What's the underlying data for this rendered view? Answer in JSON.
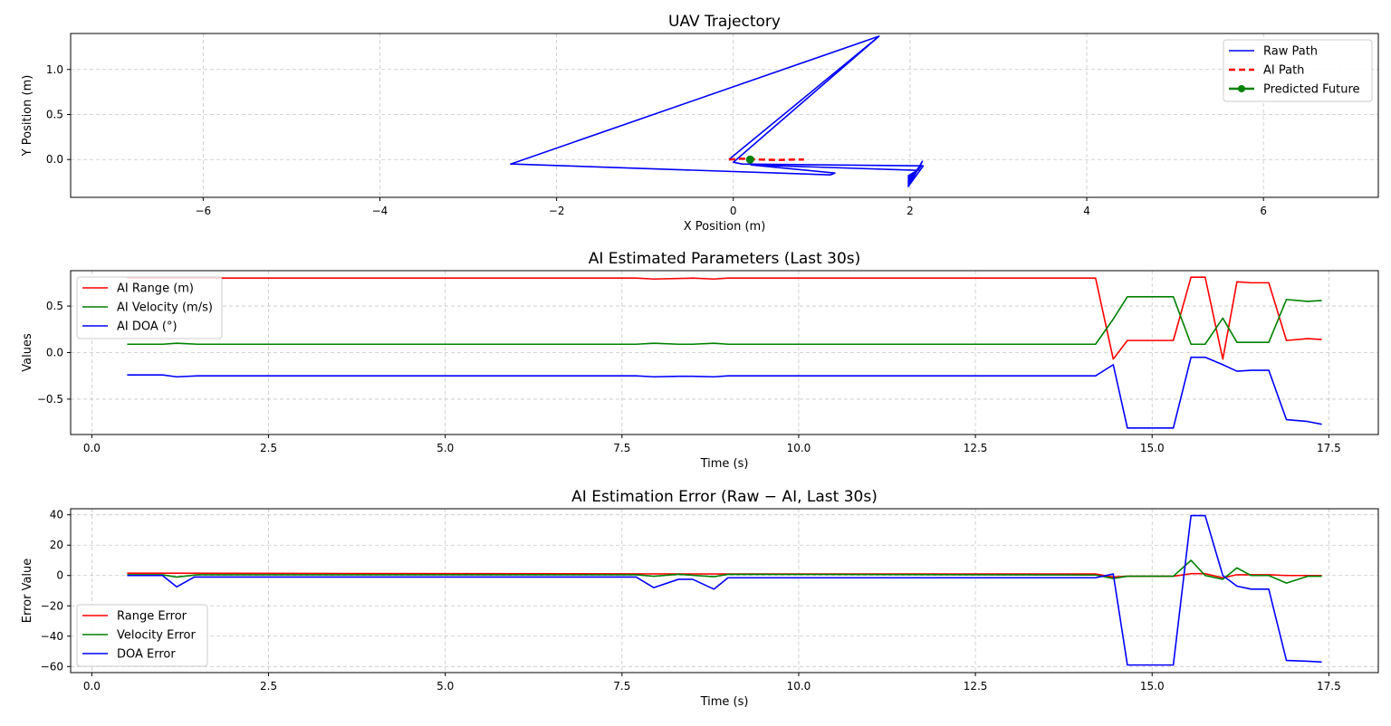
{
  "chart_data": [
    {
      "type": "line",
      "title": "UAV Trajectory",
      "xlabel": "X Position (m)",
      "ylabel": "Y Position (m)",
      "xlim": [
        -7.5,
        7.3
      ],
      "ylim": [
        -0.42,
        1.4
      ],
      "xticks": [
        -6,
        -4,
        -2,
        0,
        2,
        4,
        6
      ],
      "yticks": [
        0.0,
        0.5,
        1.0
      ],
      "grid": true,
      "legend_position": "upper right",
      "series": [
        {
          "name": "Raw Path",
          "color": "#0000ff",
          "style": "solid",
          "x": [
            -0.05,
            1.65,
            0.0,
            0.1,
            2.15,
            1.98,
            2.14,
            1.98,
            2.13,
            1.98,
            2.12,
            1.98,
            2.12,
            1.98,
            2.1,
            1.98,
            2.1,
            1.98,
            2.09,
            0.2,
            1.15,
            1.1,
            -2.5,
            -2.52,
            1.65
          ],
          "y": [
            0.0,
            1.37,
            -0.03,
            -0.05,
            -0.07,
            -0.3,
            -0.02,
            -0.28,
            -0.04,
            -0.26,
            -0.06,
            -0.24,
            -0.08,
            -0.22,
            -0.1,
            -0.2,
            -0.11,
            -0.18,
            -0.12,
            -0.06,
            -0.15,
            -0.17,
            -0.05,
            -0.05,
            1.37
          ]
        },
        {
          "name": "AI Path",
          "color": "#ff0000",
          "style": "dashed",
          "x": [
            -0.05,
            0.1,
            0.3,
            0.5,
            0.7,
            0.8
          ],
          "y": [
            0.0,
            0.01,
            0.0,
            -0.005,
            0.0,
            0.0
          ]
        },
        {
          "name": "Predicted Future",
          "color": "#008000",
          "style": "solid-marker",
          "x": [
            0.19
          ],
          "y": [
            0.0
          ]
        }
      ]
    },
    {
      "type": "line",
      "title": "AI Estimated Parameters (Last 30s)",
      "xlabel": "Time (s)",
      "ylabel": "Values",
      "xlim": [
        -0.3,
        18.2
      ],
      "ylim": [
        -0.88,
        0.88
      ],
      "xticks": [
        0.0,
        2.5,
        5.0,
        7.5,
        10.0,
        12.5,
        15.0,
        17.5
      ],
      "yticks": [
        -0.5,
        0.0,
        0.5
      ],
      "grid": true,
      "legend_position": "upper left",
      "series": [
        {
          "name": "AI Range (m)",
          "color": "#ff0000",
          "x": [
            0.5,
            1.0,
            1.5,
            7.7,
            7.95,
            8.5,
            8.8,
            9.0,
            14.2,
            14.45,
            14.65,
            15.3,
            15.55,
            15.75,
            16.0,
            16.2,
            16.4,
            16.65,
            16.9,
            17.2,
            17.4
          ],
          "y": [
            0.8,
            0.8,
            0.8,
            0.8,
            0.79,
            0.8,
            0.79,
            0.8,
            0.8,
            -0.07,
            0.13,
            0.13,
            0.81,
            0.81,
            -0.07,
            0.76,
            0.75,
            0.75,
            0.13,
            0.15,
            0.14
          ]
        },
        {
          "name": "AI Velocity (m/s)",
          "color": "#008000",
          "x": [
            0.5,
            1.0,
            1.2,
            1.5,
            7.7,
            7.95,
            8.3,
            8.5,
            8.8,
            9.0,
            14.2,
            14.45,
            14.65,
            15.1,
            15.3,
            15.55,
            15.75,
            16.0,
            16.2,
            16.4,
            16.65,
            16.9,
            17.2,
            17.4
          ],
          "y": [
            0.09,
            0.09,
            0.1,
            0.09,
            0.09,
            0.1,
            0.09,
            0.09,
            0.1,
            0.09,
            0.09,
            0.36,
            0.6,
            0.6,
            0.6,
            0.09,
            0.09,
            0.37,
            0.11,
            0.11,
            0.11,
            0.57,
            0.55,
            0.56
          ]
        },
        {
          "name": "AI DOA (°)",
          "color": "#0000ff",
          "x": [
            0.5,
            1.0,
            1.2,
            1.5,
            7.7,
            7.95,
            8.3,
            8.5,
            8.8,
            9.0,
            14.2,
            14.45,
            14.65,
            15.1,
            15.3,
            15.55,
            15.75,
            16.0,
            16.2,
            16.4,
            16.65,
            16.9,
            17.2,
            17.4
          ],
          "y": [
            -0.24,
            -0.24,
            -0.26,
            -0.25,
            -0.25,
            -0.26,
            -0.255,
            -0.255,
            -0.26,
            -0.25,
            -0.25,
            -0.13,
            -0.81,
            -0.81,
            -0.81,
            -0.05,
            -0.05,
            -0.13,
            -0.2,
            -0.19,
            -0.19,
            -0.72,
            -0.74,
            -0.77
          ]
        }
      ]
    },
    {
      "type": "line",
      "title": "AI Estimation Error (Raw − AI, Last 30s)",
      "xlabel": "Time (s)",
      "ylabel": "Error Value",
      "xlim": [
        -0.3,
        18.2
      ],
      "ylim": [
        -64,
        44
      ],
      "xticks": [
        0.0,
        2.5,
        5.0,
        7.5,
        10.0,
        12.5,
        15.0,
        17.5
      ],
      "yticks": [
        -60,
        -40,
        -20,
        0,
        20,
        40
      ],
      "grid": true,
      "legend_position": "lower left",
      "series": [
        {
          "name": "Range Error",
          "color": "#ff0000",
          "x": [
            0.5,
            1.0,
            9.0,
            14.2,
            14.45,
            14.65,
            15.3,
            15.55,
            15.75,
            16.0,
            16.2,
            16.65,
            16.9,
            17.4
          ],
          "y": [
            1.5,
            1.5,
            1.0,
            1.0,
            -1.0,
            -0.5,
            -0.5,
            1.2,
            1.2,
            -1.5,
            0.5,
            0.5,
            0.0,
            0.0
          ]
        },
        {
          "name": "Velocity Error",
          "color": "#008000",
          "x": [
            0.5,
            1.0,
            1.2,
            1.5,
            7.7,
            7.95,
            8.3,
            8.8,
            9.0,
            14.2,
            14.45,
            14.65,
            15.3,
            15.55,
            15.75,
            16.0,
            16.2,
            16.4,
            16.65,
            16.9,
            17.2,
            17.4
          ],
          "y": [
            0.5,
            0.5,
            -1.0,
            0.5,
            0.5,
            -0.5,
            0.8,
            -0.8,
            0.8,
            0.3,
            -2.0,
            -0.5,
            -0.5,
            10.0,
            0.0,
            -2.5,
            5.0,
            0.0,
            0.0,
            -5.0,
            -0.5,
            -0.5
          ]
        },
        {
          "name": "DOA Error",
          "color": "#0000ff",
          "x": [
            0.5,
            1.0,
            1.2,
            1.45,
            7.7,
            7.95,
            8.3,
            8.5,
            8.8,
            9.0,
            14.2,
            14.45,
            14.65,
            15.3,
            15.55,
            15.75,
            16.0,
            16.2,
            16.4,
            16.65,
            16.9,
            17.2,
            17.4
          ],
          "y": [
            0.0,
            0.0,
            -7.5,
            -1.0,
            -1.0,
            -8.0,
            -2.5,
            -2.5,
            -9.0,
            -1.5,
            -1.5,
            1.0,
            -59.0,
            -59.0,
            39.5,
            39.5,
            0.0,
            -7.0,
            -9.0,
            -9.0,
            -56.0,
            -56.5,
            -57.0
          ]
        }
      ]
    }
  ]
}
